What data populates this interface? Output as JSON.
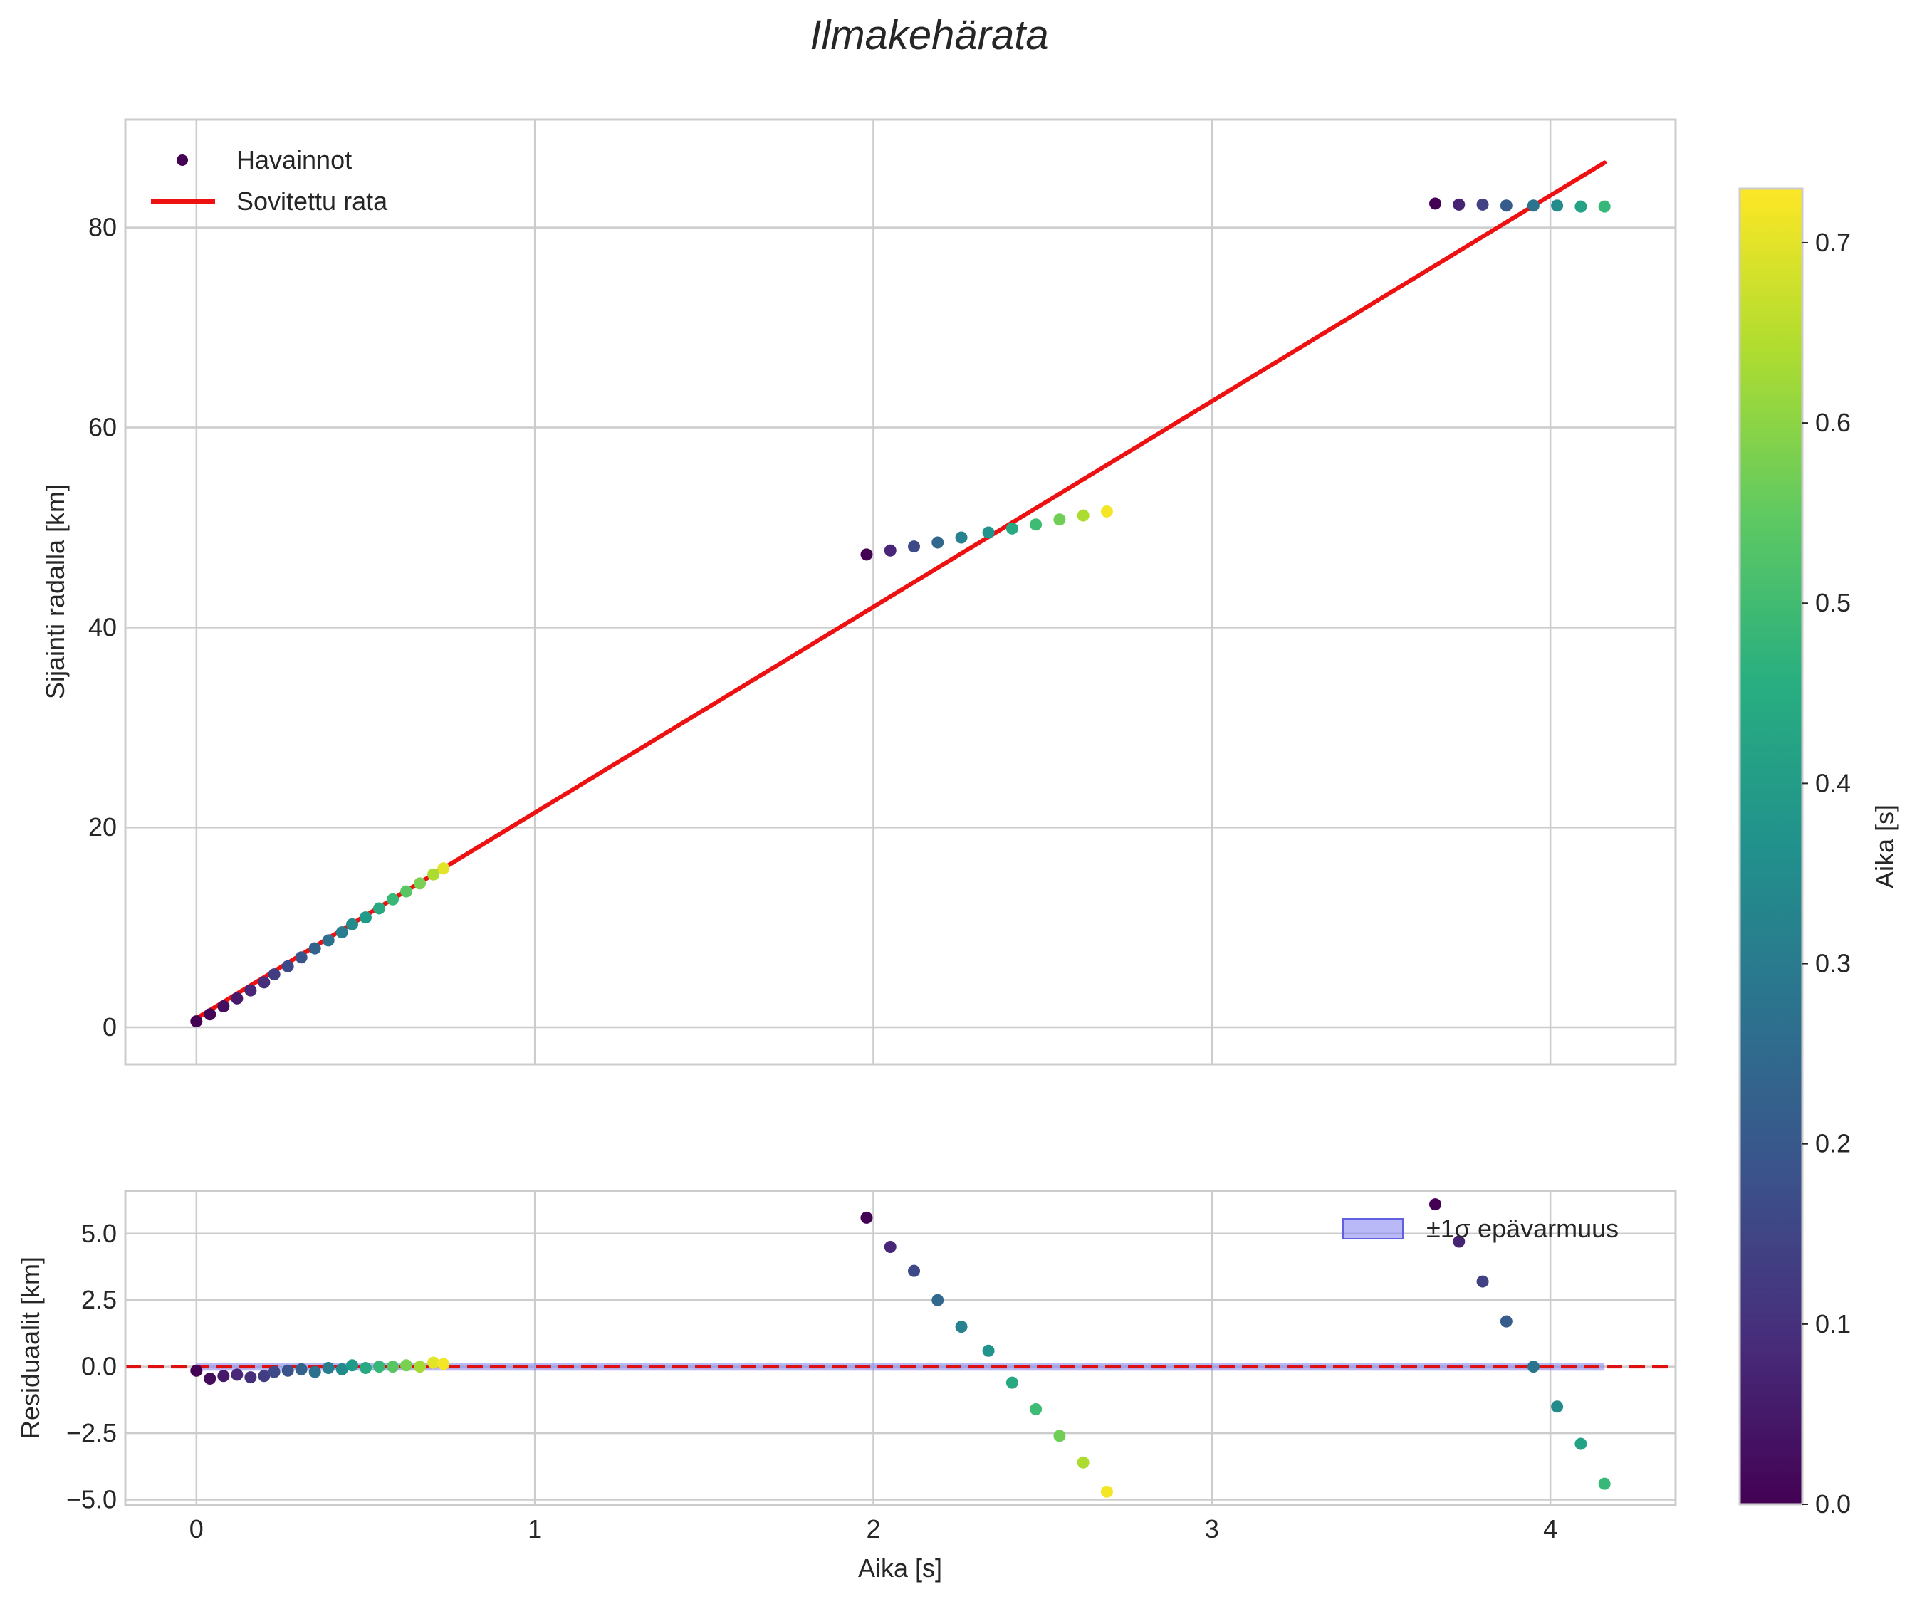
{
  "chart_data": {
    "title": "Ilmakehärata",
    "shared_x_ticks": [
      "0",
      "1",
      "2",
      "3",
      "4"
    ],
    "shared_xlim": [
      -0.21,
      4.37
    ],
    "xlabel": "Aika [s]",
    "main": {
      "type": "scatter",
      "ylabel": "Sijainti radalla [km]",
      "ylim": [
        -3.7,
        90.8
      ],
      "y_ticks": [
        0,
        20,
        40,
        60,
        80
      ],
      "y_tick_labels": [
        "0",
        "20",
        "40",
        "60",
        "80"
      ],
      "legend_position": "top-left",
      "scatter_label": "Havainnot",
      "fit_label": "Sovitettu rata",
      "fit_color": "#ee1111",
      "fit_line": {
        "x": [
          0.0,
          4.16
        ],
        "y": [
          0.9,
          86.5
        ]
      },
      "observations": [
        {
          "x": 0.0,
          "y": 0.6,
          "t": 0.0
        },
        {
          "x": 0.04,
          "y": 1.3,
          "t": 0.01
        },
        {
          "x": 0.08,
          "y": 2.1,
          "t": 0.03
        },
        {
          "x": 0.12,
          "y": 2.9,
          "t": 0.05
        },
        {
          "x": 0.16,
          "y": 3.7,
          "t": 0.08
        },
        {
          "x": 0.2,
          "y": 4.5,
          "t": 0.1
        },
        {
          "x": 0.23,
          "y": 5.3,
          "t": 0.13
        },
        {
          "x": 0.27,
          "y": 6.1,
          "t": 0.16
        },
        {
          "x": 0.31,
          "y": 7.0,
          "t": 0.19
        },
        {
          "x": 0.35,
          "y": 7.9,
          "t": 0.23
        },
        {
          "x": 0.39,
          "y": 8.7,
          "t": 0.27
        },
        {
          "x": 0.43,
          "y": 9.5,
          "t": 0.31
        },
        {
          "x": 0.46,
          "y": 10.3,
          "t": 0.35
        },
        {
          "x": 0.5,
          "y": 11.0,
          "t": 0.4
        },
        {
          "x": 0.54,
          "y": 11.9,
          "t": 0.44
        },
        {
          "x": 0.58,
          "y": 12.8,
          "t": 0.49
        },
        {
          "x": 0.62,
          "y": 13.6,
          "t": 0.54
        },
        {
          "x": 0.66,
          "y": 14.4,
          "t": 0.58
        },
        {
          "x": 0.7,
          "y": 15.3,
          "t": 0.64
        },
        {
          "x": 0.73,
          "y": 15.9,
          "t": 0.7
        },
        {
          "x": 1.98,
          "y": 47.3,
          "t": 0.0
        },
        {
          "x": 2.05,
          "y": 47.7,
          "t": 0.08
        },
        {
          "x": 2.12,
          "y": 48.1,
          "t": 0.16
        },
        {
          "x": 2.19,
          "y": 48.5,
          "t": 0.24
        },
        {
          "x": 2.26,
          "y": 49.0,
          "t": 0.32
        },
        {
          "x": 2.34,
          "y": 49.5,
          "t": 0.38
        },
        {
          "x": 2.41,
          "y": 49.9,
          "t": 0.44
        },
        {
          "x": 2.48,
          "y": 50.3,
          "t": 0.5
        },
        {
          "x": 2.55,
          "y": 50.8,
          "t": 0.57
        },
        {
          "x": 2.62,
          "y": 51.2,
          "t": 0.64
        },
        {
          "x": 2.69,
          "y": 51.6,
          "t": 0.72
        },
        {
          "x": 3.66,
          "y": 82.4,
          "t": 0.0
        },
        {
          "x": 3.73,
          "y": 82.3,
          "t": 0.07
        },
        {
          "x": 3.8,
          "y": 82.3,
          "t": 0.14
        },
        {
          "x": 3.87,
          "y": 82.2,
          "t": 0.21
        },
        {
          "x": 3.95,
          "y": 82.2,
          "t": 0.28
        },
        {
          "x": 4.02,
          "y": 82.2,
          "t": 0.35
        },
        {
          "x": 4.09,
          "y": 82.1,
          "t": 0.42
        },
        {
          "x": 4.16,
          "y": 82.1,
          "t": 0.49
        }
      ]
    },
    "residuals": {
      "type": "scatter",
      "ylabel": "Residuaalit [km]",
      "ylim": [
        -5.2,
        6.6
      ],
      "y_ticks": [
        5.0,
        2.5,
        0.0,
        -2.5,
        -5.0
      ],
      "y_tick_labels": [
        "5.0",
        "2.5",
        "0.0",
        "−2.5",
        "−5.0"
      ],
      "zero_line_color": "#dd1111",
      "band_label": "±1σ epävarmuus",
      "band_color": "#8080f0",
      "band_sigma": 0.15,
      "legend_position": "top-right",
      "points": [
        {
          "x": 0.0,
          "y": -0.15,
          "t": 0.0
        },
        {
          "x": 0.04,
          "y": -0.45,
          "t": 0.02
        },
        {
          "x": 0.08,
          "y": -0.35,
          "t": 0.05
        },
        {
          "x": 0.12,
          "y": -0.3,
          "t": 0.08
        },
        {
          "x": 0.16,
          "y": -0.4,
          "t": 0.1
        },
        {
          "x": 0.2,
          "y": -0.35,
          "t": 0.13
        },
        {
          "x": 0.23,
          "y": -0.2,
          "t": 0.16
        },
        {
          "x": 0.27,
          "y": -0.15,
          "t": 0.19
        },
        {
          "x": 0.31,
          "y": -0.1,
          "t": 0.23
        },
        {
          "x": 0.35,
          "y": -0.2,
          "t": 0.27
        },
        {
          "x": 0.39,
          "y": -0.05,
          "t": 0.31
        },
        {
          "x": 0.43,
          "y": -0.1,
          "t": 0.35
        },
        {
          "x": 0.46,
          "y": 0.05,
          "t": 0.4
        },
        {
          "x": 0.5,
          "y": -0.05,
          "t": 0.44
        },
        {
          "x": 0.54,
          "y": 0.0,
          "t": 0.49
        },
        {
          "x": 0.58,
          "y": 0.0,
          "t": 0.54
        },
        {
          "x": 0.62,
          "y": 0.05,
          "t": 0.58
        },
        {
          "x": 0.66,
          "y": 0.0,
          "t": 0.63
        },
        {
          "x": 0.7,
          "y": 0.15,
          "t": 0.7
        },
        {
          "x": 0.73,
          "y": 0.1,
          "t": 0.72
        },
        {
          "x": 1.98,
          "y": 5.6,
          "t": 0.0
        },
        {
          "x": 2.05,
          "y": 4.5,
          "t": 0.08
        },
        {
          "x": 2.12,
          "y": 3.6,
          "t": 0.16
        },
        {
          "x": 2.19,
          "y": 2.5,
          "t": 0.24
        },
        {
          "x": 2.26,
          "y": 1.5,
          "t": 0.32
        },
        {
          "x": 2.34,
          "y": 0.6,
          "t": 0.38
        },
        {
          "x": 2.41,
          "y": -0.6,
          "t": 0.44
        },
        {
          "x": 2.48,
          "y": -1.6,
          "t": 0.5
        },
        {
          "x": 2.55,
          "y": -2.6,
          "t": 0.57
        },
        {
          "x": 2.62,
          "y": -3.6,
          "t": 0.64
        },
        {
          "x": 2.69,
          "y": -4.7,
          "t": 0.72
        },
        {
          "x": 3.66,
          "y": 6.1,
          "t": 0.0
        },
        {
          "x": 3.73,
          "y": 4.7,
          "t": 0.07
        },
        {
          "x": 3.8,
          "y": 3.2,
          "t": 0.14
        },
        {
          "x": 3.87,
          "y": 1.7,
          "t": 0.21
        },
        {
          "x": 3.95,
          "y": 0.0,
          "t": 0.28
        },
        {
          "x": 4.02,
          "y": -1.5,
          "t": 0.35
        },
        {
          "x": 4.09,
          "y": -2.9,
          "t": 0.42
        },
        {
          "x": 4.16,
          "y": -4.4,
          "t": 0.49
        }
      ]
    },
    "colorbar": {
      "label": "Aika [s]",
      "colormap": "viridis",
      "range": [
        0.0,
        0.73
      ],
      "ticks": [
        0.0,
        0.1,
        0.2,
        0.3,
        0.4,
        0.5,
        0.6,
        0.7
      ],
      "tick_labels": [
        "0.0",
        "0.1",
        "0.2",
        "0.3",
        "0.4",
        "0.5",
        "0.6",
        "0.7"
      ]
    }
  }
}
